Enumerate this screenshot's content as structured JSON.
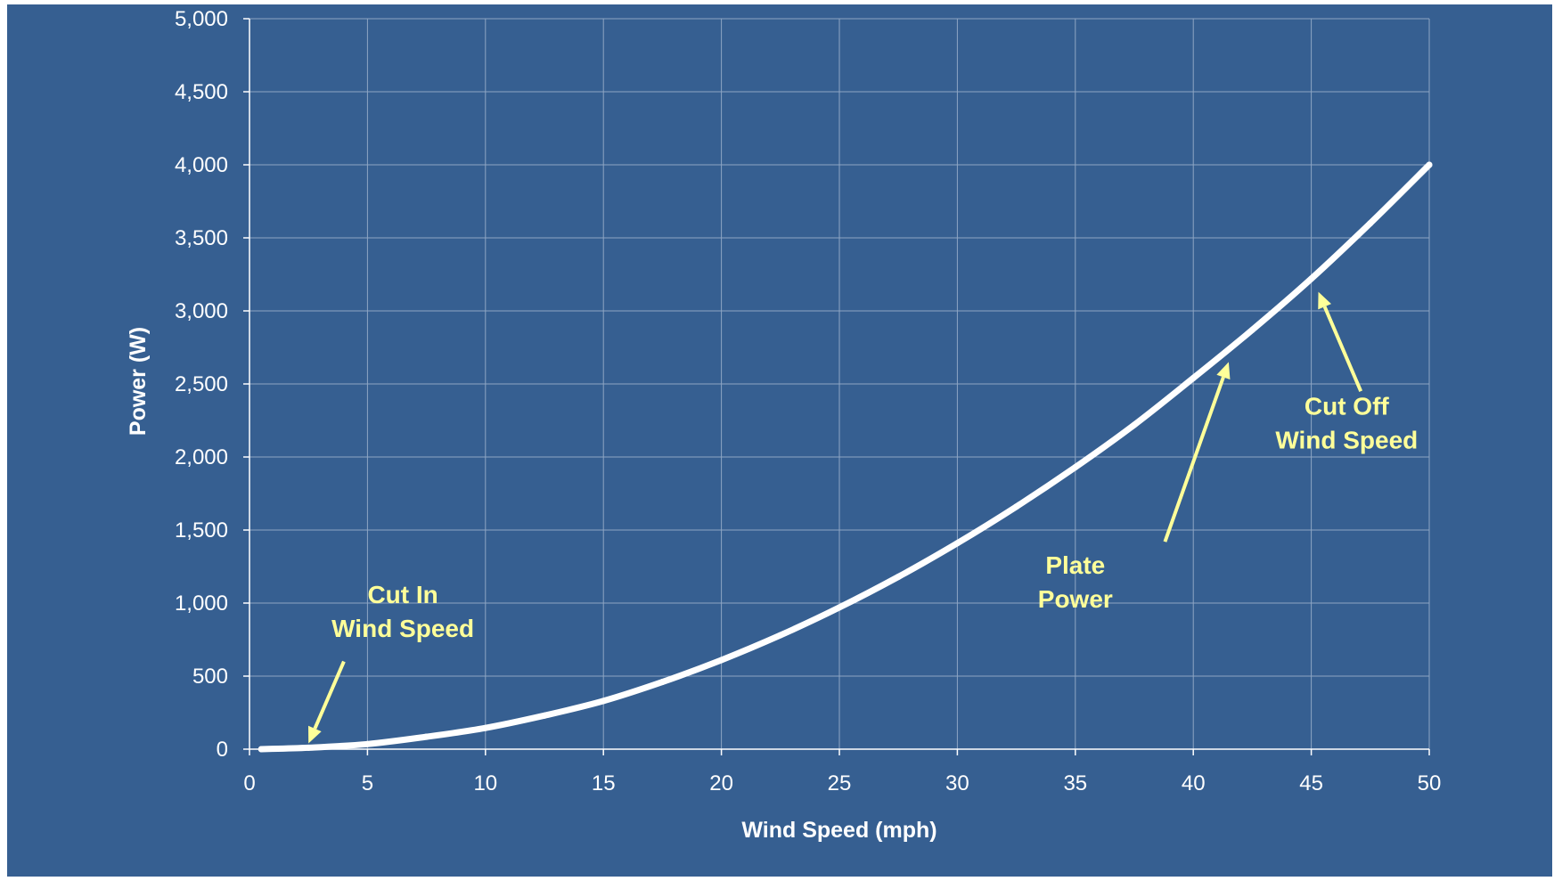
{
  "colors": {
    "background": "#365F91",
    "grid": "#8EA6C4",
    "axis": "#FFFFFF",
    "curve": "#FFFFFF",
    "annotation": "#FFFF99",
    "text": "#FFFFFF"
  },
  "chart_data": {
    "type": "line",
    "title": "",
    "xlabel": "Wind Speed (mph)",
    "ylabel": "Power (W)",
    "xlim": [
      0,
      50
    ],
    "ylim": [
      0,
      5000
    ],
    "grid": true,
    "legend": "none",
    "x_ticks": [
      0,
      5,
      10,
      15,
      20,
      25,
      30,
      35,
      40,
      45,
      50
    ],
    "x_tick_labels": [
      "0",
      "5",
      "10",
      "15",
      "20",
      "25",
      "30",
      "35",
      "40",
      "45",
      "50"
    ],
    "y_ticks": [
      0,
      500,
      1000,
      1500,
      2000,
      2500,
      3000,
      3500,
      4000,
      4500,
      5000
    ],
    "y_tick_labels": [
      "0",
      "500",
      "1,000",
      "1,500",
      "2,000",
      "2,500",
      "3,000",
      "3,500",
      "4,000",
      "4,500",
      "5,000"
    ],
    "series": [
      {
        "x": [
          0.5,
          2.5,
          5,
          7.5,
          10,
          12.5,
          15,
          17.5,
          20,
          22.5,
          25,
          27.5,
          30,
          32.5,
          35,
          37.5,
          40,
          42.5,
          45,
          47.5,
          50
        ],
        "y": [
          0,
          10,
          35,
          85,
          145,
          230,
          330,
          460,
          610,
          780,
          970,
          1180,
          1410,
          1660,
          1930,
          2220,
          2540,
          2870,
          3220,
          3600,
          4000
        ]
      }
    ],
    "annotations": [
      {
        "lines": [
          "Cut In",
          "Wind Speed"
        ],
        "text_at": [
          6.5,
          1000
        ],
        "arrow_from": [
          4,
          600
        ],
        "arrow_to": [
          2.5,
          40
        ]
      },
      {
        "lines": [
          "Plate",
          "Power"
        ],
        "text_at": [
          35,
          1200
        ],
        "arrow_from": [
          38.8,
          1420
        ],
        "arrow_to": [
          41.5,
          2650
        ]
      },
      {
        "lines": [
          "Cut Off",
          "Wind Speed"
        ],
        "text_at": [
          46.5,
          2290
        ],
        "arrow_from": [
          47.1,
          2450
        ],
        "arrow_to": [
          45.3,
          3130
        ]
      }
    ]
  }
}
